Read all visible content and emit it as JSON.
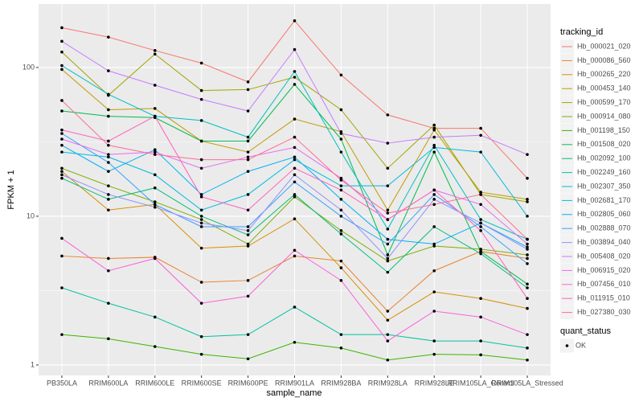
{
  "chart_data": {
    "type": "line",
    "x_label": "sample_name",
    "y_label": "FPKM + 1",
    "log_y": true,
    "grid": true,
    "categories": [
      "PB350LA",
      "RRIM600LA",
      "RRIM600LE",
      "RRIM600SE",
      "RRIM600PE",
      "RRIM901LA",
      "RRIM928BA",
      "RRIM928LA",
      "RRIM928LE",
      "RRIM105LA_Control",
      "RRIM105LA_Stressed"
    ],
    "ylim": [
      0.85,
      267
    ],
    "yticks": [
      1,
      10,
      100
    ],
    "legend_title": "tracking_id",
    "point_legend_title": "quant_status",
    "point_legend_label": "OK",
    "point_color": "#000000",
    "series": [
      {
        "name": "Hb_000021_020",
        "color": "#F8766D",
        "values": [
          185,
          160,
          130,
          107,
          80,
          206,
          89,
          48,
          39,
          39,
          18
        ]
      },
      {
        "name": "Hb_000086_560",
        "color": "#EA8331",
        "values": [
          5.4,
          5.2,
          5.3,
          3.6,
          3.7,
          5.4,
          5.0,
          2.3,
          4.3,
          5.8,
          5.2
        ]
      },
      {
        "name": "Hb_000265_220",
        "color": "#D89000",
        "values": [
          20,
          11,
          12,
          6.1,
          6.3,
          9.6,
          4.5,
          2.0,
          3.1,
          2.8,
          2.4
        ]
      },
      {
        "name": "Hb_000453_140",
        "color": "#C09B00",
        "values": [
          97,
          52,
          53,
          32,
          27,
          45,
          37,
          11,
          38,
          14.5,
          13
        ]
      },
      {
        "name": "Hb_000599_170",
        "color": "#A3A500",
        "values": [
          127,
          65,
          123,
          70,
          71,
          86,
          52,
          21,
          41,
          14,
          12.5
        ]
      },
      {
        "name": "Hb_000914_080",
        "color": "#7CAE00",
        "values": [
          21,
          16,
          12.5,
          9.5,
          6.5,
          13.5,
          8,
          5,
          6.3,
          6,
          5.5
        ]
      },
      {
        "name": "Hb_001198_150",
        "color": "#39B600",
        "values": [
          1.6,
          1.5,
          1.33,
          1.18,
          1.1,
          1.42,
          1.3,
          1.08,
          1.18,
          1.17,
          1.08
        ]
      },
      {
        "name": "Hb_001508_020",
        "color": "#00BB4E",
        "values": [
          51,
          47,
          46,
          32,
          32,
          77,
          33,
          5.5,
          27,
          5.8,
          3.5
        ]
      },
      {
        "name": "Hb_002092_100",
        "color": "#00BF7D",
        "values": [
          18,
          13,
          15.5,
          10,
          7.5,
          14,
          7.6,
          4.2,
          8.5,
          5.6,
          3.3
        ]
      },
      {
        "name": "Hb_002249_160",
        "color": "#00C1A3",
        "values": [
          3.3,
          2.6,
          2.1,
          1.55,
          1.6,
          2.45,
          1.6,
          1.6,
          1.45,
          1.45,
          1.3
        ]
      },
      {
        "name": "Hb_002307_350",
        "color": "#00BFC4",
        "values": [
          103,
          66,
          47,
          44,
          34,
          94,
          27,
          8.2,
          30,
          9.5,
          7
        ]
      },
      {
        "name": "Hb_002681_170",
        "color": "#00BAE0",
        "values": [
          27,
          25,
          19,
          11,
          14,
          24,
          16,
          16,
          29,
          27,
          10
        ]
      },
      {
        "name": "Hb_002805_060",
        "color": "#00B0F6",
        "values": [
          30,
          20,
          28,
          14,
          20,
          25,
          13,
          7,
          6.5,
          9,
          6.2
        ]
      },
      {
        "name": "Hb_002888_070",
        "color": "#35A2FF",
        "values": [
          36,
          23,
          12,
          8.5,
          8.5,
          17,
          10,
          6.5,
          14,
          8.5,
          4.8
        ]
      },
      {
        "name": "Hb_003894_040",
        "color": "#9590FF",
        "values": [
          19,
          14,
          11.5,
          9,
          8,
          19,
          11,
          5.2,
          13,
          9,
          6
        ]
      },
      {
        "name": "Hb_005408_020",
        "color": "#C77CFF",
        "values": [
          150,
          95,
          76,
          61,
          51,
          132,
          36,
          31,
          34,
          35,
          26
        ]
      },
      {
        "name": "Hb_006915_020",
        "color": "#E76BF3",
        "values": [
          33,
          26,
          27,
          21,
          25,
          29,
          18,
          9.5,
          15,
          12,
          6.5
        ]
      },
      {
        "name": "Hb_007456_010",
        "color": "#FA62DB",
        "values": [
          7.1,
          4.3,
          5.2,
          2.6,
          2.9,
          5.9,
          3.7,
          1.45,
          2.3,
          2.1,
          1.6
        ]
      },
      {
        "name": "Hb_011915_010",
        "color": "#FF62BC",
        "values": [
          38,
          32,
          47,
          13.5,
          11,
          21,
          15,
          9.5,
          15,
          8,
          2.8
        ]
      },
      {
        "name": "Hb_027380_030",
        "color": "#FF6C91",
        "values": [
          60,
          30,
          26,
          24,
          24,
          34,
          17.5,
          10.5,
          12,
          14,
          7
        ]
      }
    ]
  }
}
